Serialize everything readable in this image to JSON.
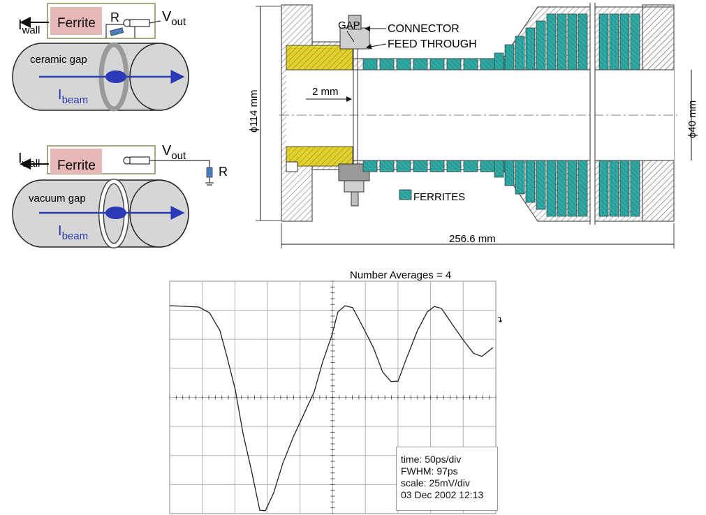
{
  "diagram_top": {
    "i_wall": "I",
    "i_wall_sub": "wall",
    "ferrite": "Ferrite",
    "r": "R",
    "v_out": "V",
    "v_out_sub": "out",
    "gap": "ceramic gap",
    "i_beam": "I",
    "i_beam_sub": "beam"
  },
  "diagram_bottom": {
    "i_wall": "I",
    "i_wall_sub": "wall",
    "ferrite": "Ferrite",
    "r": "R",
    "v_out": "V",
    "v_out_sub": "out",
    "gap": "vacuum gap",
    "i_beam": "I",
    "i_beam_sub": "beam"
  },
  "drawing": {
    "gap": "GAP",
    "connector": "CONNECTOR",
    "feedthrough": "FEED THROUGH",
    "gap_width": "2 mm",
    "outer_dia": "ϕ114 mm",
    "inner_dia": "ϕ40 mm",
    "length": "256.6 mm",
    "ferrites": "FERRITES",
    "colors": {
      "ferrite": "#2fa7a2",
      "ceramic": "#d8c92a",
      "hatch": "#666666"
    }
  },
  "scope": {
    "header": "Number Averages = 4",
    "info": [
      "time: 50ps/div",
      "FWHM: 97ps",
      "scale: 25mV/div",
      "03 Dec 2002 12:13"
    ]
  }
}
